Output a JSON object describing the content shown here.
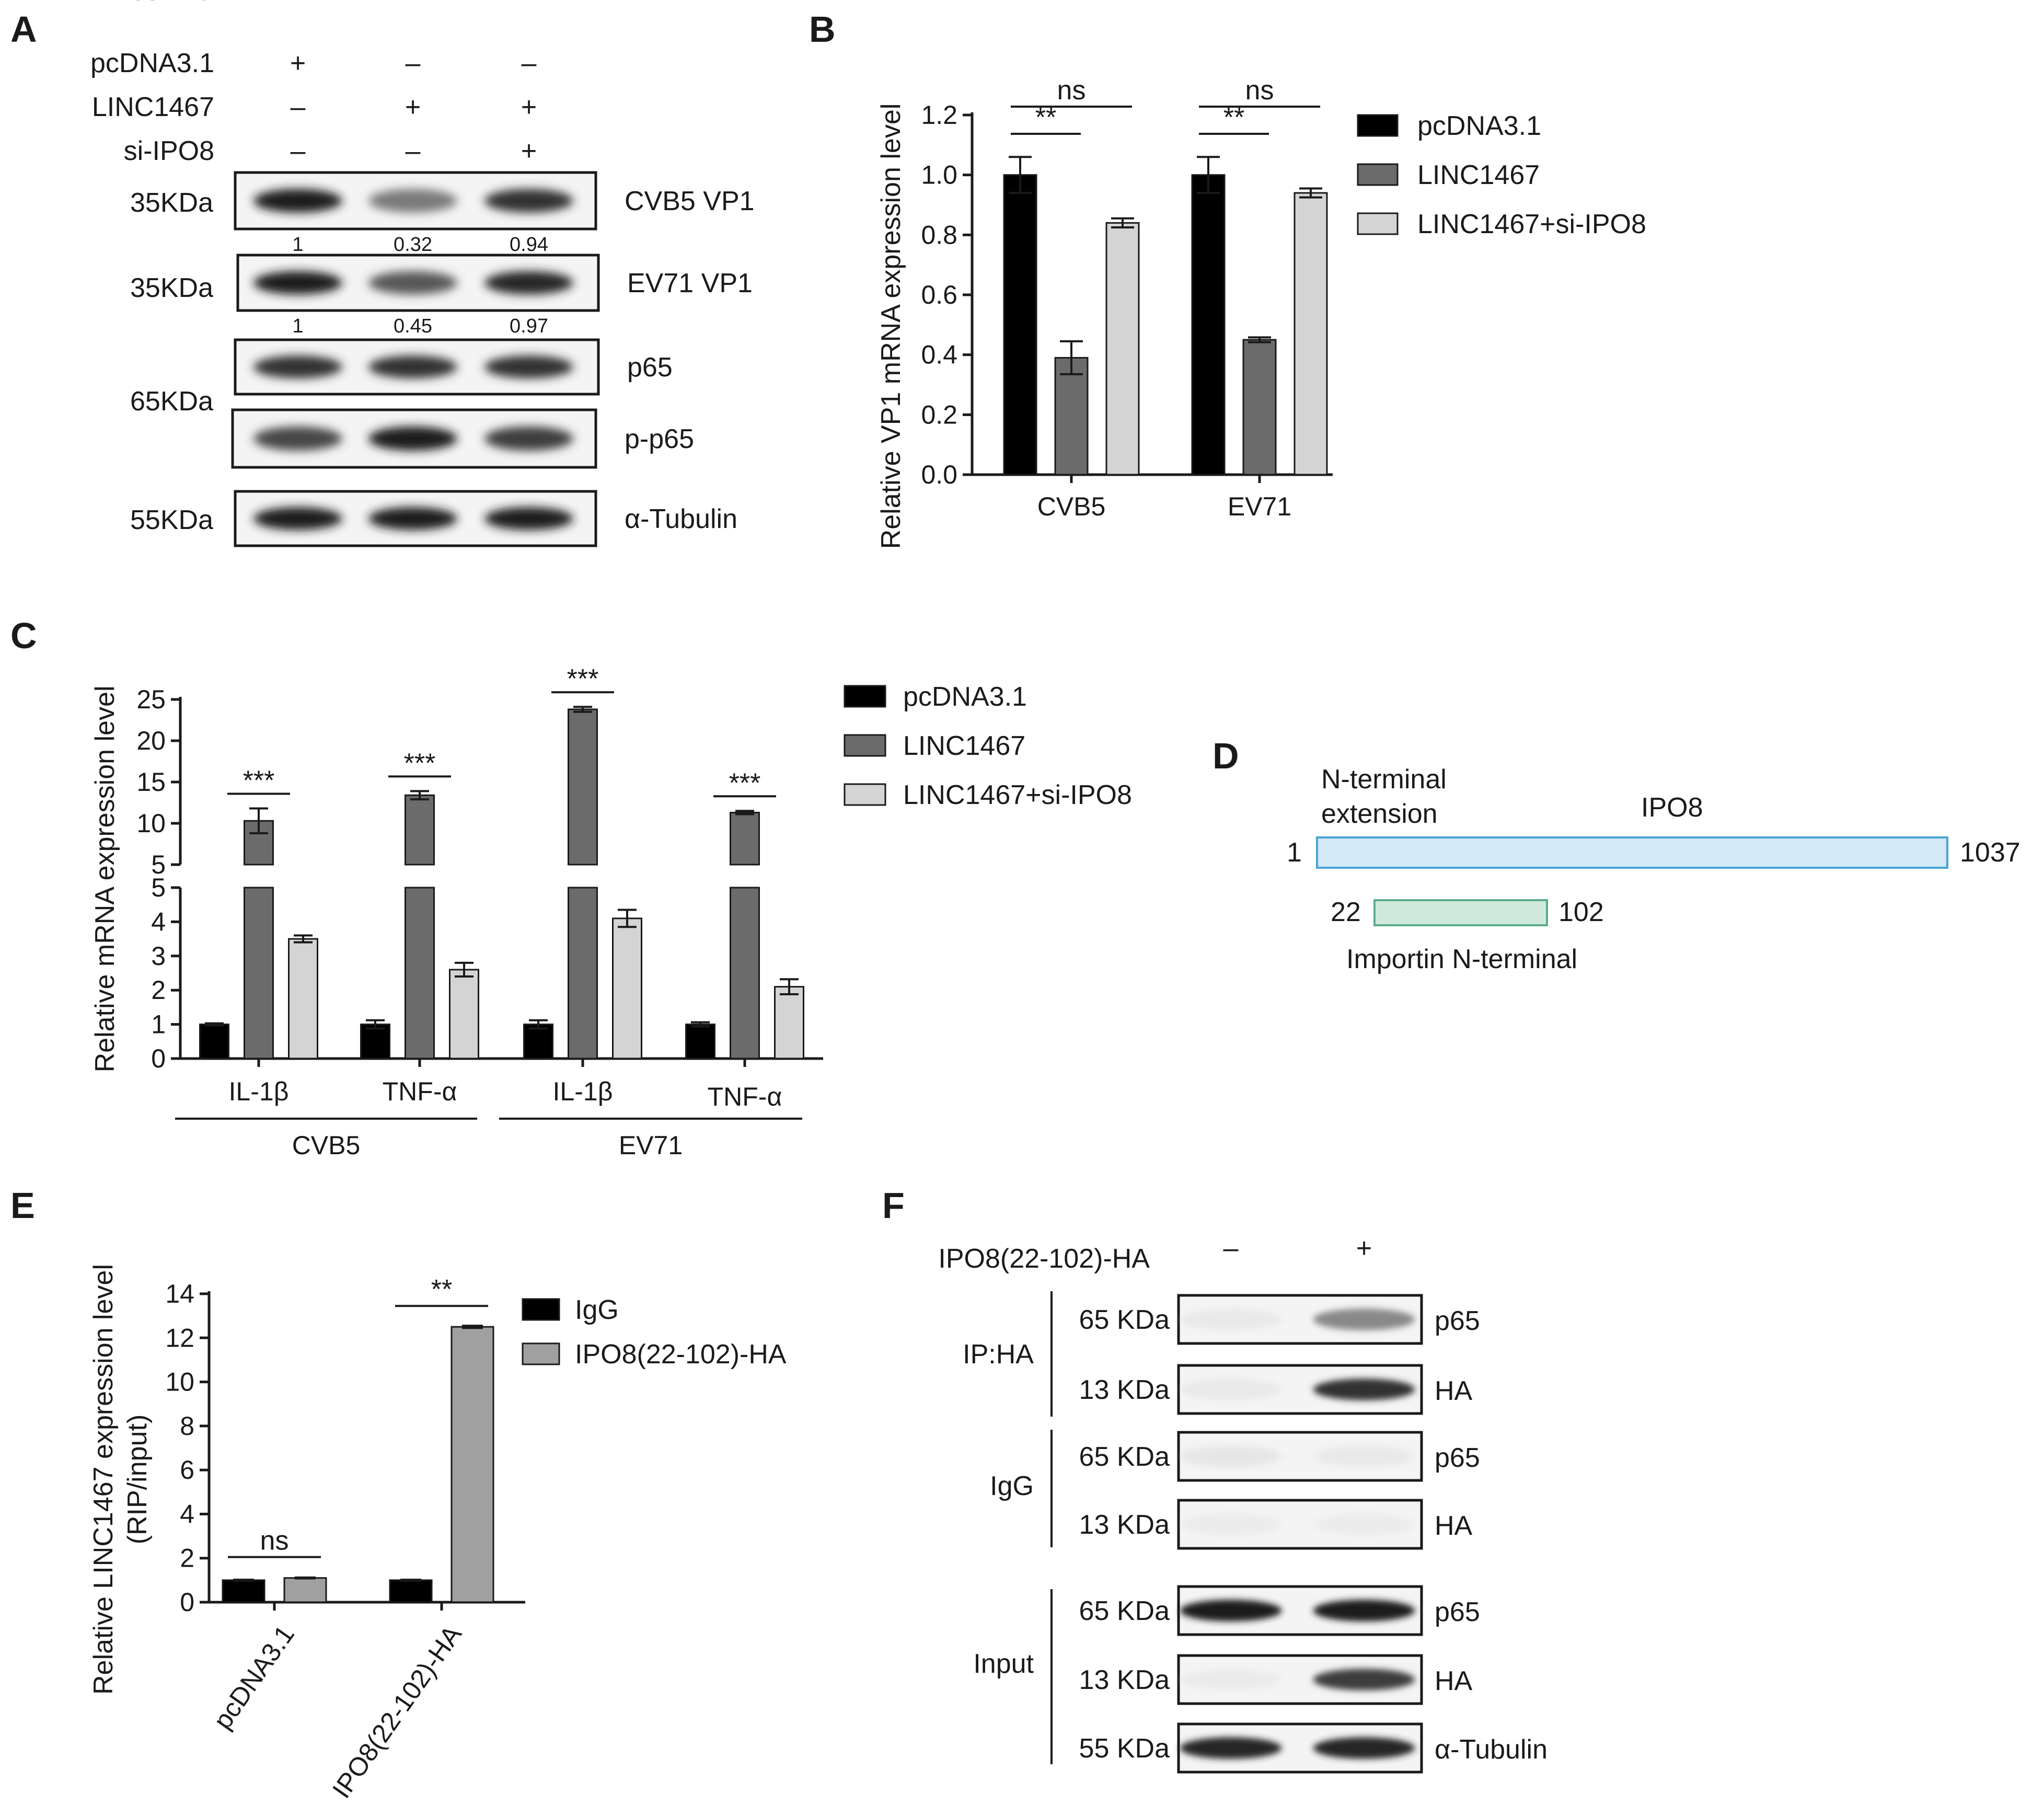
{
  "panels": {
    "A": {
      "letter": "A",
      "conditions": [
        {
          "label": "pcDNA3.1",
          "signs": [
            "+",
            "–",
            "–"
          ]
        },
        {
          "label": "LINC1467",
          "signs": [
            "–",
            "+",
            "+"
          ]
        },
        {
          "label": "si-IPO8",
          "signs": [
            "–",
            "–",
            "+"
          ]
        }
      ],
      "blots": [
        {
          "target": "CVB5 VP1",
          "mw": "35KDa",
          "quant": [
            "1",
            "0.32",
            "0.94"
          ],
          "intensity": [
            0.95,
            0.6,
            0.85
          ]
        },
        {
          "target": "EV71 VP1",
          "mw": "35KDa",
          "quant": [
            "1",
            "0.45",
            "0.97"
          ],
          "intensity": [
            0.95,
            0.7,
            0.9
          ]
        },
        {
          "target": "p65",
          "mw": "65KDa",
          "quant": [],
          "intensity": [
            0.85,
            0.85,
            0.85
          ]
        },
        {
          "target": "p-p65",
          "mw": "",
          "quant": [],
          "intensity": [
            0.75,
            0.95,
            0.8
          ]
        },
        {
          "target": "α-Tubulin",
          "mw": "55KDa",
          "quant": [],
          "intensity": [
            0.95,
            0.95,
            0.95
          ]
        }
      ]
    },
    "B": {
      "letter": "B"
    },
    "C": {
      "letter": "C"
    },
    "D": {
      "letter": "D",
      "protein": "IPO8",
      "start": "1",
      "end": "1037",
      "extension_label_1": "N-terminal",
      "extension_label_2": "extension",
      "domain_start": "22",
      "domain_end": "102",
      "domain_label": "Importin N-terminal",
      "protein_color": "#d3e9f6",
      "protein_border": "#4aa3d6",
      "domain_color": "#cfeadc",
      "domain_border": "#5aae8a"
    },
    "E": {
      "letter": "E"
    },
    "F": {
      "letter": "F",
      "construct": "IPO8(22-102)-HA",
      "signs": [
        "–",
        "+"
      ],
      "groups": [
        {
          "name": "IP:HA",
          "blots": [
            {
              "mw": "65 KDa",
              "target": "p65",
              "intensity": [
                0.05,
                0.55
              ]
            },
            {
              "mw": "13 KDa",
              "target": "HA",
              "intensity": [
                0.05,
                0.85
              ]
            }
          ]
        },
        {
          "name": "IgG",
          "blots": [
            {
              "mw": "65 KDa",
              "target": "p65",
              "intensity": [
                0.08,
                0.05
              ]
            },
            {
              "mw": "13 KDa",
              "target": "HA",
              "intensity": [
                0.03,
                0.03
              ]
            }
          ]
        },
        {
          "name": "Input",
          "blots": [
            {
              "mw": "65 KDa",
              "target": "p65",
              "intensity": [
                0.95,
                0.95
              ]
            },
            {
              "mw": "13 KDa",
              "target": "HA",
              "intensity": [
                0.04,
                0.8
              ]
            },
            {
              "mw": "55 KDa",
              "target": "α-Tubulin",
              "intensity": [
                0.9,
                0.9
              ]
            }
          ]
        }
      ]
    }
  },
  "chart_data": [
    {
      "id": "B",
      "type": "bar",
      "ylabel": "Relative VP1 mRNA  expression level",
      "categories": [
        "CVB5",
        "EV71"
      ],
      "ylim": [
        0,
        1.2
      ],
      "yticks": [
        "0.0",
        "0.2",
        "0.4",
        "0.6",
        "0.8",
        "1.0",
        "1.2"
      ],
      "series": [
        {
          "name": "pcDNA3.1",
          "color": "#000000",
          "values": [
            1.0,
            1.0
          ],
          "errors": [
            0.06,
            0.06
          ]
        },
        {
          "name": "LINC1467",
          "color": "#6b6b6b",
          "values": [
            0.39,
            0.45
          ],
          "errors": [
            0.055,
            0.008
          ]
        },
        {
          "name": "LINC1467+si-IPO8",
          "color": "#d4d4d4",
          "values": [
            0.84,
            0.94
          ],
          "errors": [
            0.015,
            0.015
          ]
        }
      ],
      "annotations": [
        {
          "text": "ns",
          "category": 0,
          "from": 0,
          "to": 2,
          "level": 1
        },
        {
          "text": "**",
          "category": 0,
          "from": 0,
          "to": 1,
          "level": 0
        },
        {
          "text": "ns",
          "category": 1,
          "from": 0,
          "to": 2,
          "level": 1
        },
        {
          "text": "**",
          "category": 1,
          "from": 0,
          "to": 1,
          "level": 0
        }
      ]
    },
    {
      "id": "C",
      "type": "bar",
      "ylabel": "Relative mRNA  expression level",
      "categories": [
        "IL-1β",
        "TNF-α",
        "IL-1β",
        "TNF-α"
      ],
      "groups": [
        {
          "label": "CVB5",
          "categories": [
            0,
            1
          ]
        },
        {
          "label": "EV71",
          "categories": [
            2,
            3
          ]
        }
      ],
      "broken_axis": {
        "lower": [
          0,
          5
        ],
        "upper": [
          5,
          25
        ]
      },
      "yticks_lower": [
        "0",
        "1",
        "2",
        "3",
        "4",
        "5"
      ],
      "yticks_upper": [
        "5",
        "10",
        "15",
        "20",
        "25"
      ],
      "series": [
        {
          "name": "pcDNA3.1",
          "color": "#000000",
          "values": [
            1.0,
            1.0,
            1.0,
            1.0
          ],
          "errors": [
            0.03,
            0.12,
            0.12,
            0.06
          ]
        },
        {
          "name": "LINC1467",
          "color": "#6b6b6b",
          "values": [
            10.3,
            13.4,
            23.8,
            11.3
          ],
          "errors": [
            1.5,
            0.5,
            0.3,
            0.2
          ]
        },
        {
          "name": "LINC1467+si-IPO8",
          "color": "#d4d4d4",
          "values": [
            3.5,
            2.6,
            4.1,
            2.1
          ],
          "errors": [
            0.1,
            0.2,
            0.25,
            0.22
          ]
        }
      ],
      "annotations": [
        {
          "text": "***",
          "category": 0
        },
        {
          "text": "***",
          "category": 1
        },
        {
          "text": "***",
          "category": 2
        },
        {
          "text": "***",
          "category": 3
        }
      ]
    },
    {
      "id": "E",
      "type": "bar",
      "ylabel_1": "Relative LINC1467 expression level",
      "ylabel_2": "(RIP/input)",
      "categories": [
        "pcDNA3.1",
        "IPO8(22-102)-HA"
      ],
      "ylim": [
        0,
        14
      ],
      "yticks": [
        "0",
        "2",
        "4",
        "6",
        "8",
        "10",
        "12",
        "14"
      ],
      "series": [
        {
          "name": "IgG",
          "color": "#000000",
          "values": [
            1.0,
            1.0
          ],
          "errors": [
            0.02,
            0.02
          ]
        },
        {
          "name": "IPO8(22-102)-HA",
          "color": "#a0a0a0",
          "values": [
            1.1,
            12.5
          ],
          "errors": [
            0.02,
            0.05
          ]
        }
      ],
      "annotations": [
        {
          "text": "ns",
          "category": 0
        },
        {
          "text": "**",
          "category": 1
        }
      ]
    }
  ]
}
